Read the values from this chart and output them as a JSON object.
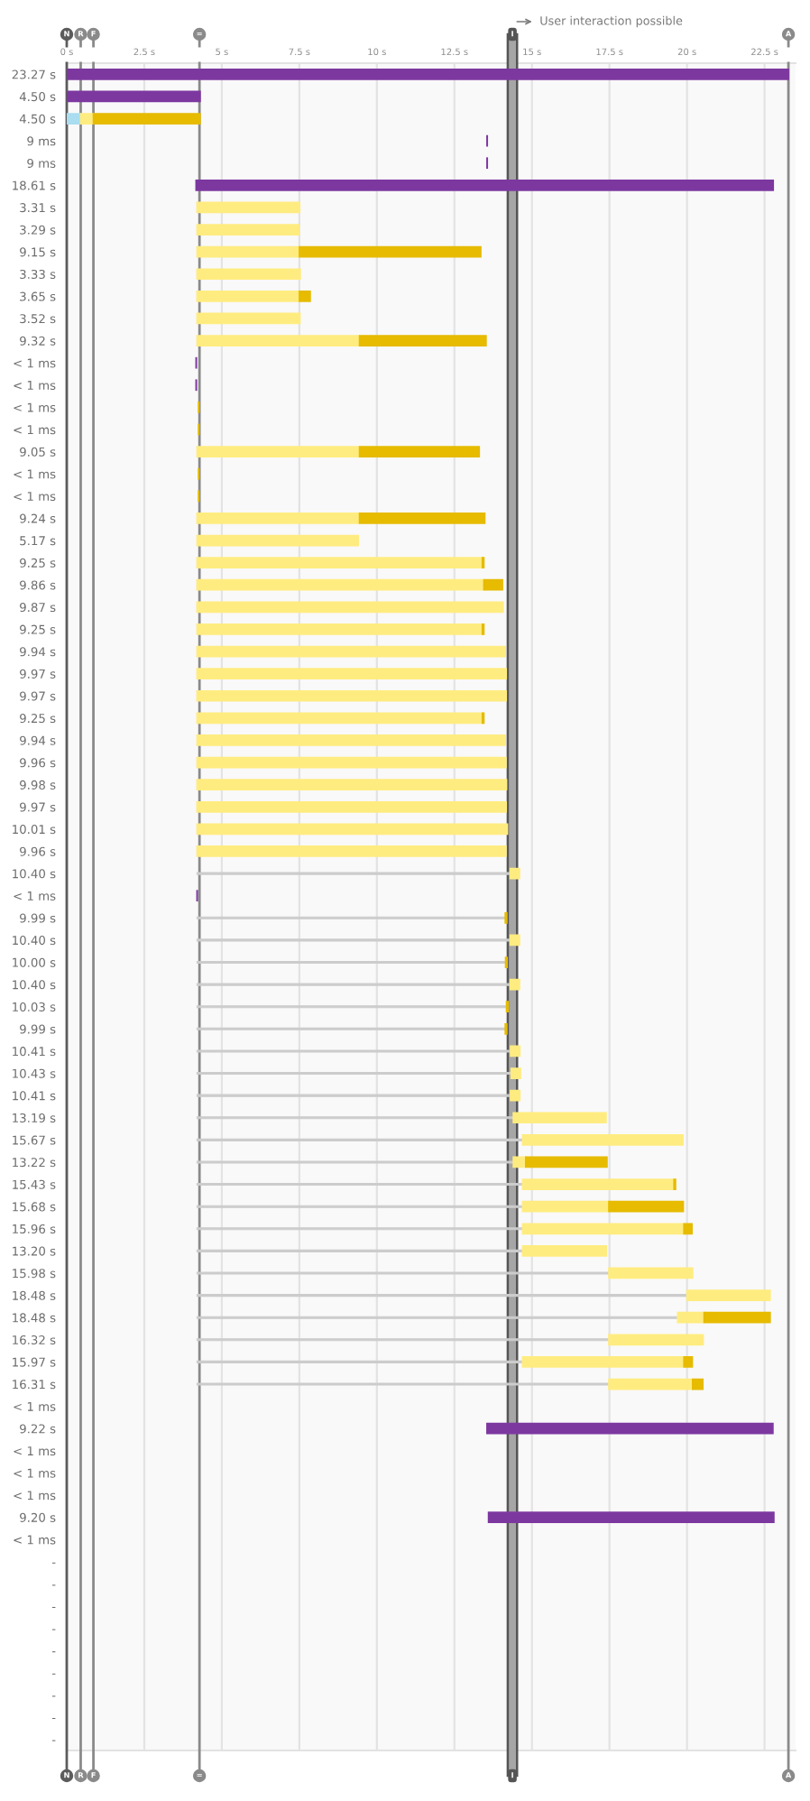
{
  "chart_data": {
    "type": "bar",
    "orientation": "horizontal",
    "annotations": [
      "User interaction possible"
    ],
    "categories": [
      "23.27 s",
      "4.50 s",
      "4.50 s",
      "9 ms",
      "9 ms",
      "18.61 s",
      "3.31 s",
      "3.29 s",
      "9.15 s",
      "3.33 s",
      "3.65 s",
      "3.52 s",
      "9.32 s",
      "< 1 ms",
      "< 1 ms",
      "< 1 ms",
      "< 1 ms",
      "9.05 s",
      "< 1 ms",
      "< 1 ms",
      "9.24 s",
      "5.17 s",
      "9.25 s",
      "9.86 s",
      "9.87 s",
      "9.25 s",
      "9.94 s",
      "9.97 s",
      "9.97 s",
      "9.25 s",
      "9.94 s",
      "9.96 s",
      "9.98 s",
      "9.97 s",
      "10.01 s",
      "9.96 s",
      "10.40 s",
      "< 1 ms",
      "9.99 s",
      "10.40 s",
      "10.00 s",
      "10.40 s",
      "10.03 s",
      "9.99 s",
      "10.41 s",
      "10.43 s",
      "10.41 s",
      "13.19 s",
      "15.67 s",
      "13.22 s",
      "15.43 s",
      "15.68 s",
      "15.96 s",
      "13.20 s",
      "15.98 s",
      "18.48 s",
      "18.48 s",
      "16.32 s",
      "15.97 s",
      "16.31 s",
      "< 1 ms",
      "9.22 s",
      "< 1 ms",
      "< 1 ms",
      "< 1 ms",
      "9.20 s",
      "< 1 ms",
      "-",
      "-",
      "-",
      "-",
      "-",
      "-",
      "-",
      "-",
      "-"
    ],
    "series": [
      {
        "type": "bar",
        "line_style": "solid",
        "color": "#cccccc",
        "base": [
          null,
          null,
          null,
          null,
          null,
          null,
          null,
          null,
          null,
          null,
          null,
          null,
          null,
          null,
          null,
          null,
          null,
          null,
          null,
          null,
          null,
          null,
          null,
          null,
          null,
          null,
          null,
          null,
          null,
          null,
          null,
          null,
          null,
          null,
          null,
          null,
          4.2,
          null,
          4.2,
          4.2,
          4.2,
          4.2,
          4.2,
          4.2,
          4.2,
          4.2,
          4.2,
          4.2,
          4.2,
          4.2,
          4.2,
          4.2,
          4.2,
          4.2,
          4.2,
          4.2,
          4.2,
          4.2,
          4.2,
          4.2,
          null,
          null,
          null,
          null,
          null,
          null,
          null,
          null,
          null,
          null,
          null,
          null,
          null,
          null,
          null,
          null
        ],
        "values": [
          null,
          null,
          null,
          null,
          null,
          null,
          null,
          null,
          null,
          null,
          null,
          null,
          null,
          null,
          null,
          null,
          null,
          null,
          null,
          null,
          null,
          null,
          null,
          null,
          null,
          null,
          null,
          null,
          null,
          null,
          null,
          null,
          null,
          null,
          null,
          null,
          10.1,
          null,
          9.94,
          10.1,
          9.95,
          10.1,
          9.98,
          9.94,
          10.11,
          10.13,
          10.11,
          10.2,
          10.5,
          10.2,
          10.5,
          10.5,
          10.5,
          10.5,
          13.28,
          15.8,
          15.5,
          13.28,
          10.5,
          13.28,
          null,
          null,
          null,
          null,
          null,
          null,
          null,
          null,
          null,
          null,
          null,
          null,
          null,
          null,
          null,
          null
        ]
      },
      {
        "color": "#a9ddef",
        "base": [
          null,
          null,
          0,
          null,
          null,
          null,
          null,
          null,
          null,
          null,
          null,
          null,
          null,
          null,
          null,
          null,
          null,
          null,
          null,
          null,
          null,
          null,
          null,
          null,
          null,
          null,
          null,
          null,
          null,
          null,
          null,
          null,
          null,
          null,
          null,
          null,
          null,
          null,
          null,
          null,
          null,
          null,
          null,
          null,
          null,
          null,
          null,
          null,
          null,
          null,
          null,
          null,
          null,
          null,
          null,
          null,
          null,
          null,
          null,
          null,
          null,
          null,
          null,
          null,
          null,
          null,
          null,
          null,
          null,
          null,
          null,
          null,
          null,
          null,
          null,
          null
        ],
        "values": [
          null,
          null,
          0.45,
          null,
          null,
          null,
          null,
          null,
          null,
          null,
          null,
          null,
          null,
          null,
          null,
          null,
          null,
          null,
          null,
          null,
          null,
          null,
          null,
          null,
          null,
          null,
          null,
          null,
          null,
          null,
          null,
          null,
          null,
          null,
          null,
          null,
          null,
          null,
          null,
          null,
          null,
          null,
          null,
          null,
          null,
          null,
          null,
          null,
          null,
          null,
          null,
          null,
          null,
          null,
          null,
          null,
          null,
          null,
          null,
          null,
          null,
          null,
          null,
          null,
          null,
          null,
          null,
          null,
          null,
          null,
          null,
          null,
          null,
          null,
          null,
          null
        ]
      },
      {
        "color": "#ffec80",
        "base": [
          null,
          null,
          0.45,
          null,
          null,
          null,
          4.2,
          4.2,
          4.2,
          4.2,
          4.2,
          4.2,
          4.2,
          null,
          null,
          null,
          null,
          4.2,
          null,
          null,
          4.2,
          4.2,
          4.2,
          4.2,
          4.2,
          4.2,
          4.2,
          4.2,
          4.2,
          4.2,
          4.2,
          4.2,
          4.2,
          4.2,
          4.2,
          4.2,
          14.3,
          null,
          null,
          14.3,
          null,
          14.3,
          null,
          null,
          14.31,
          14.33,
          14.31,
          14.4,
          14.7,
          14.4,
          14.7,
          14.7,
          14.7,
          14.7,
          17.48,
          20.0,
          19.7,
          17.48,
          14.7,
          17.48,
          null,
          null,
          null,
          null,
          null,
          null,
          null,
          null,
          null,
          null,
          null,
          null,
          null,
          null,
          null,
          null
        ],
        "values": [
          null,
          null,
          0.41,
          null,
          null,
          null,
          3.31,
          3.29,
          3.3,
          3.33,
          3.3,
          3.32,
          5.24,
          null,
          null,
          null,
          null,
          5.24,
          null,
          null,
          5.24,
          5.2,
          9.2,
          9.25,
          9.87,
          9.2,
          9.94,
          9.97,
          9.97,
          9.2,
          9.94,
          9.96,
          9.98,
          9.97,
          10.01,
          9.96,
          0.3,
          null,
          null,
          0.3,
          null,
          0.3,
          null,
          null,
          0.3,
          0.3,
          0.3,
          2.99,
          5.17,
          0.4,
          4.88,
          2.78,
          5.2,
          2.7,
          2.7,
          2.68,
          0.85,
          3.04,
          5.2,
          2.7,
          null,
          null,
          null,
          null,
          null,
          null,
          null,
          null,
          null,
          null,
          null,
          null,
          null,
          null,
          null,
          null
        ]
      },
      {
        "color": "#e6bb00",
        "base": [
          null,
          null,
          0.86,
          null,
          null,
          null,
          null,
          null,
          7.5,
          null,
          7.5,
          null,
          9.44,
          null,
          null,
          4.25,
          4.25,
          9.44,
          4.25,
          4.25,
          9.44,
          null,
          13.4,
          13.45,
          null,
          13.4,
          null,
          null,
          null,
          13.4,
          null,
          null,
          null,
          null,
          null,
          null,
          null,
          null,
          14.14,
          null,
          14.15,
          null,
          14.18,
          14.14,
          null,
          null,
          null,
          null,
          null,
          14.8,
          19.58,
          17.48,
          19.9,
          null,
          null,
          null,
          20.55,
          null,
          19.9,
          20.18,
          null,
          null,
          null,
          null,
          null,
          null,
          null,
          null,
          null,
          null,
          null,
          null,
          null,
          null,
          null,
          null
        ],
        "values": [
          null,
          null,
          3.44,
          null,
          null,
          null,
          null,
          null,
          5.85,
          null,
          0.35,
          null,
          4.08,
          null,
          null,
          0.01,
          0.01,
          3.86,
          0.01,
          0.01,
          4.04,
          null,
          0.05,
          0.6,
          null,
          0.05,
          null,
          null,
          null,
          0.05,
          null,
          null,
          null,
          null,
          null,
          null,
          null,
          null,
          0.05,
          null,
          0.05,
          null,
          0.05,
          0.05,
          null,
          null,
          null,
          null,
          null,
          2.62,
          0.05,
          2.4,
          0.26,
          null,
          null,
          null,
          2.13,
          null,
          0.27,
          0.33,
          null,
          null,
          null,
          null,
          null,
          null,
          null,
          null,
          null,
          null,
          null,
          null,
          null,
          null,
          null,
          null
        ]
      },
      {
        "color": "#7d38a0",
        "base": [
          0,
          0,
          null,
          13.55,
          13.55,
          4.17,
          null,
          null,
          null,
          null,
          null,
          null,
          null,
          4.17,
          4.17,
          null,
          null,
          null,
          null,
          null,
          null,
          null,
          null,
          null,
          null,
          null,
          null,
          null,
          null,
          null,
          null,
          null,
          null,
          null,
          null,
          null,
          null,
          4.2,
          null,
          null,
          null,
          null,
          null,
          null,
          null,
          null,
          null,
          null,
          null,
          null,
          null,
          null,
          null,
          null,
          null,
          null,
          null,
          null,
          null,
          null,
          null,
          13.55,
          null,
          null,
          null,
          13.6,
          null,
          null,
          null,
          null,
          null,
          null,
          null,
          null,
          null,
          null
        ],
        "values": [
          23.27,
          4.3,
          null,
          0.01,
          0.01,
          18.61,
          null,
          null,
          null,
          null,
          null,
          null,
          null,
          0.01,
          0.01,
          null,
          null,
          null,
          null,
          null,
          null,
          null,
          null,
          null,
          null,
          null,
          null,
          null,
          null,
          null,
          null,
          null,
          null,
          null,
          null,
          null,
          null,
          0.01,
          null,
          null,
          null,
          null,
          null,
          null,
          null,
          null,
          null,
          null,
          null,
          null,
          null,
          null,
          null,
          null,
          null,
          null,
          null,
          null,
          null,
          null,
          null,
          9.22,
          null,
          null,
          null,
          9.2,
          null,
          null,
          null,
          null,
          null,
          null,
          null,
          null,
          null,
          null
        ]
      }
    ],
    "xlim": [
      0,
      23.5
    ],
    "xticks": [
      {
        "value": 0,
        "label": "0 s"
      },
      {
        "value": 2.5,
        "label": "2.5 s"
      },
      {
        "value": 5,
        "label": "5 s"
      },
      {
        "value": 7.5,
        "label": "7.5 s"
      },
      {
        "value": 10,
        "label": "10 s"
      },
      {
        "value": 12.5,
        "label": "12.5 s"
      },
      {
        "value": 15,
        "label": "15 s"
      },
      {
        "value": 17.5,
        "label": "17.5 s"
      },
      {
        "value": 20,
        "label": "20 s"
      },
      {
        "value": 22.5,
        "label": "22.5 s"
      }
    ],
    "grid": "x",
    "ref_lines": [
      {
        "axis": "x",
        "value": 0,
        "label": "N",
        "color": "#5c5c5c"
      },
      {
        "axis": "x",
        "value": 0.45,
        "label": "R",
        "color": "#8a8a8a"
      },
      {
        "axis": "x",
        "value": 0.86,
        "label": "F",
        "color": "#8a8a8a"
      },
      {
        "axis": "x",
        "value": 4.28,
        "label": "=",
        "color": "#8a8a8a"
      },
      {
        "axis": "x",
        "value": 23.27,
        "label": "A",
        "color": "#8a8a8a"
      }
    ],
    "bands": [
      {
        "axis": "x",
        "from": 14.22,
        "to": 14.52,
        "label": "I",
        "color": "#a6a6a6"
      }
    ]
  }
}
